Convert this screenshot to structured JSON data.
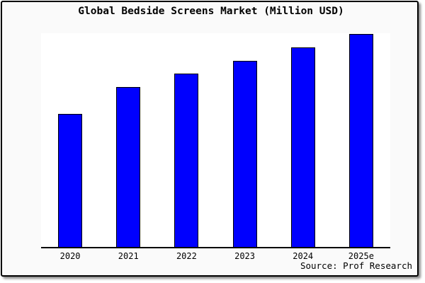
{
  "header": {
    "title": "Global Bedside Screens Market (Million USD)"
  },
  "chart_data": {
    "type": "bar",
    "title": "Global Bedside Screens Market (Million USD)",
    "categories": [
      "2020",
      "2021",
      "2022",
      "2023",
      "2024",
      "2025e"
    ],
    "values": [
      100,
      120,
      130,
      140,
      150,
      160
    ],
    "xlabel": "",
    "ylabel": "",
    "y_axis_labels": "none",
    "ylim": [
      0,
      161
    ],
    "grid": false,
    "legend": "none",
    "bar_color": "#0000fe",
    "bar_border_color": "#000000",
    "plot_background": "#ffffff",
    "card_background": "#fafafa"
  },
  "footer": {
    "source_label": "Source: Prof Research"
  },
  "colors": {
    "accent_bar": "#0000fe",
    "axis": "#000000",
    "text": "#000000"
  }
}
